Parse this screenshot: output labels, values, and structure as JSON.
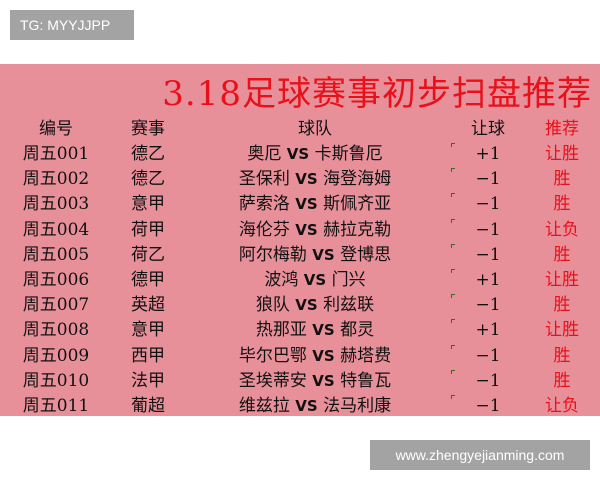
{
  "overlay_label": "TG: MYYJJPP",
  "watermark": "www.zhengyejianming.com",
  "title": "3.18足球赛事初步扫盘推荐",
  "headers": [
    "编号",
    "赛事",
    "球队",
    "让球",
    "推荐"
  ],
  "rows": [
    {
      "id": "周五001",
      "league": "德乙",
      "home": "奥厄",
      "vs": "VS",
      "away": "卡斯鲁厄",
      "handicap": "+1",
      "pick": "让胜"
    },
    {
      "id": "周五002",
      "league": "德乙",
      "home": "圣保利",
      "vs": "VS",
      "away": "海登海姆",
      "handicap": "−1",
      "pick": "胜"
    },
    {
      "id": "周五003",
      "league": "意甲",
      "home": "萨索洛",
      "vs": "VS",
      "away": "斯佩齐亚",
      "handicap": "−1",
      "pick": "胜"
    },
    {
      "id": "周五004",
      "league": "荷甲",
      "home": "海伦芬",
      "vs": "VS",
      "away": "赫拉克勒",
      "handicap": "−1",
      "pick": "让负"
    },
    {
      "id": "周五005",
      "league": "荷乙",
      "home": "阿尔梅勒",
      "vs": "VS",
      "away": "登博思",
      "handicap": "−1",
      "pick": "胜"
    },
    {
      "id": "周五006",
      "league": "德甲",
      "home": "波鸿",
      "vs": "VS",
      "away": "门兴",
      "handicap": "+1",
      "pick": "让胜"
    },
    {
      "id": "周五007",
      "league": "英超",
      "home": "狼队",
      "vs": "VS",
      "away": "利兹联",
      "handicap": "−1",
      "pick": "胜"
    },
    {
      "id": "周五008",
      "league": "意甲",
      "home": "热那亚",
      "vs": "VS",
      "away": "都灵",
      "handicap": "+1",
      "pick": "让胜"
    },
    {
      "id": "周五009",
      "league": "西甲",
      "home": "毕尔巴鄂",
      "vs": "VS",
      "away": "赫塔费",
      "handicap": "−1",
      "pick": "胜"
    },
    {
      "id": "周五010",
      "league": "法甲",
      "home": "圣埃蒂安",
      "vs": "VS",
      "away": "特鲁瓦",
      "handicap": "−1",
      "pick": "胜"
    },
    {
      "id": "周五011",
      "league": "葡超",
      "home": "维兹拉",
      "vs": "VS",
      "away": "法马利康",
      "handicap": "−1",
      "pick": "让负"
    }
  ],
  "colors": {
    "background": "#e8909a",
    "title": "#e8101a",
    "pick": "#e8101a"
  }
}
